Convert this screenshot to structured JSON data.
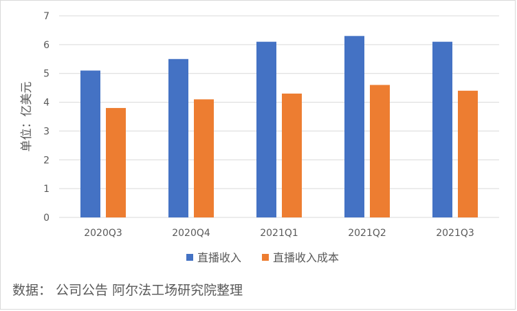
{
  "chart_data": {
    "type": "bar",
    "title": "",
    "xlabel": "",
    "ylabel": "单位：亿美元",
    "ylim": [
      0,
      7
    ],
    "yticks": [
      0,
      1,
      2,
      3,
      4,
      5,
      6,
      7
    ],
    "grid": true,
    "legend_position": "bottom",
    "categories": [
      "2020Q3",
      "2020Q4",
      "2021Q1",
      "2021Q2",
      "2021Q3"
    ],
    "series": [
      {
        "name": "直播收入",
        "color": "#4472c4",
        "values": [
          5.1,
          5.5,
          6.1,
          6.3,
          6.1
        ]
      },
      {
        "name": "直播收入成本",
        "color": "#ed7d31",
        "values": [
          3.8,
          4.1,
          4.3,
          4.6,
          4.4
        ]
      }
    ]
  },
  "footer": {
    "source": "数据： 公司公告 阿尔法工场研究院整理"
  }
}
